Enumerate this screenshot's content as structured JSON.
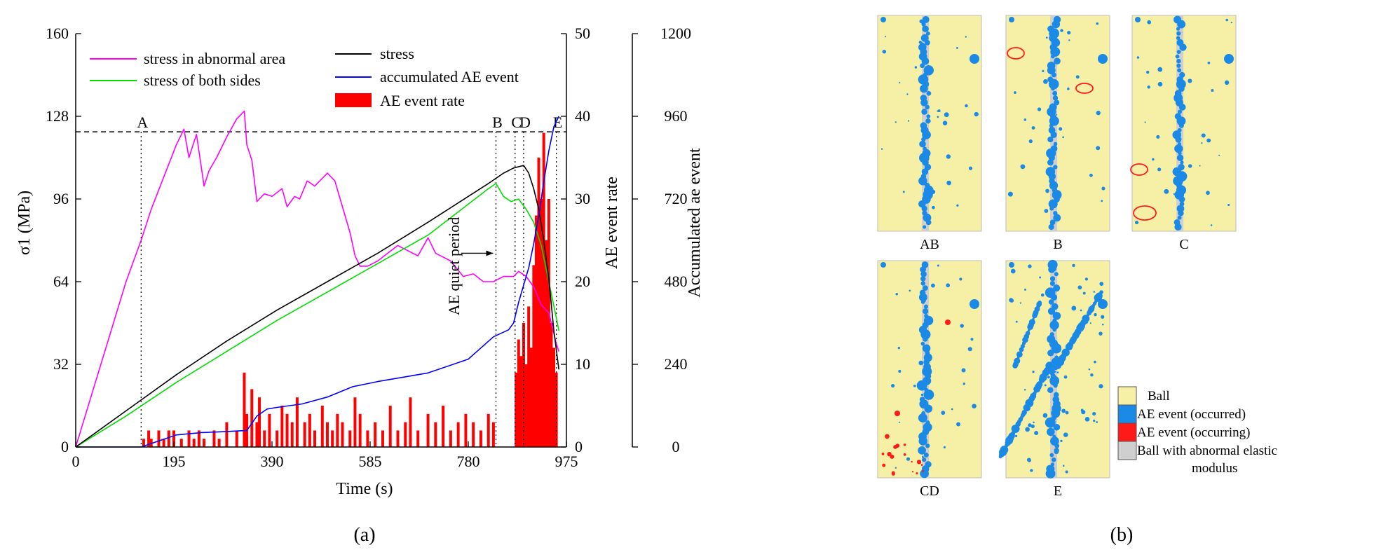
{
  "chart_data": [
    {
      "panel": "a",
      "type": "line",
      "panel_label": "(a)",
      "xlabel": "Time (s)",
      "xlim": [
        0,
        975
      ],
      "xticks": [
        0,
        195,
        390,
        585,
        780,
        975
      ],
      "axes": {
        "left": {
          "label": "σ1 (MPa)",
          "ylim": [
            0,
            160
          ],
          "ticks": [
            0,
            32,
            64,
            96,
            128,
            160
          ]
        },
        "right1": {
          "label": "AE event rate",
          "ylim": [
            0,
            50
          ],
          "ticks": [
            0,
            10,
            20,
            30,
            40,
            50
          ]
        },
        "right2": {
          "label": "Accumulated ae event",
          "ylim": [
            0,
            1200
          ],
          "ticks": [
            0,
            240,
            480,
            720,
            960,
            1200
          ]
        }
      },
      "reference_line": {
        "y": 122,
        "style": "dashed"
      },
      "event_markers": [
        {
          "label": "A",
          "x": 130
        },
        {
          "label": "B",
          "x": 835
        },
        {
          "label": "C",
          "x": 873
        },
        {
          "label": "D",
          "x": 890
        },
        {
          "label": "E",
          "x": 955
        }
      ],
      "annotation": {
        "text": "AE quiet period",
        "x_from": 755,
        "x_to": 835,
        "y": 75
      },
      "legend": [
        {
          "label": "stress in abnormal area",
          "color": "#ff00ff",
          "kind": "line"
        },
        {
          "label": "stress of both sides",
          "color": "#00dd00",
          "kind": "line"
        },
        {
          "label": "stress",
          "color": "#000000",
          "kind": "line"
        },
        {
          "label": "accumulated AE event",
          "color": "#0000ff",
          "kind": "line"
        },
        {
          "label": "AE event rate",
          "color": "#ff0000",
          "kind": "bar"
        }
      ],
      "series": [
        {
          "name": "stress in abnormal area",
          "axis": "left",
          "color": "#ff00ff",
          "x": [
            0,
            50,
            100,
            130,
            150,
            180,
            200,
            215,
            225,
            240,
            255,
            265,
            280,
            300,
            320,
            335,
            340,
            350,
            360,
            375,
            390,
            410,
            420,
            435,
            445,
            460,
            475,
            490,
            500,
            515,
            530,
            545,
            555,
            565,
            580,
            600,
            620,
            640,
            660,
            680,
            700,
            715,
            725,
            745,
            770,
            790,
            810,
            830,
            850,
            870,
            880,
            895,
            910,
            925,
            940,
            955,
            960
          ],
          "y": [
            0,
            32,
            64,
            80,
            92,
            107,
            117,
            123,
            112,
            121,
            101,
            107,
            112,
            120,
            127,
            130,
            117,
            111,
            95,
            98,
            97,
            100,
            93,
            97,
            96,
            103,
            101,
            104,
            106,
            103,
            93,
            83,
            74,
            70,
            70,
            72,
            75,
            78,
            76,
            74,
            81,
            75,
            74,
            72,
            66,
            67,
            64,
            64,
            66,
            66,
            68,
            66,
            62,
            55,
            52,
            40,
            37
          ]
        },
        {
          "name": "stress of both sides",
          "axis": "left",
          "color": "#00dd00",
          "x": [
            0,
            100,
            200,
            300,
            400,
            500,
            600,
            700,
            780,
            820,
            835,
            850,
            865,
            880,
            895,
            910,
            925,
            940,
            955,
            960
          ],
          "y": [
            0,
            12,
            25,
            37,
            49,
            60,
            71,
            82,
            94,
            100,
            102,
            97,
            95,
            96,
            92,
            87,
            78,
            64,
            50,
            45
          ]
        },
        {
          "name": "stress",
          "axis": "left",
          "color": "#000000",
          "x": [
            0,
            100,
            200,
            300,
            400,
            500,
            600,
            700,
            780,
            820,
            850,
            870,
            890,
            900,
            910,
            920,
            930,
            940,
            950,
            960
          ],
          "y": [
            0,
            14,
            28,
            41,
            53,
            64,
            75,
            87,
            97,
            102,
            106,
            108,
            109,
            106,
            100,
            92,
            80,
            65,
            45,
            30
          ]
        },
        {
          "name": "accumulated AE event",
          "axis": "right2",
          "color": "#0000ff",
          "x": [
            0,
            130,
            200,
            250,
            300,
            340,
            360,
            380,
            400,
            450,
            500,
            550,
            600,
            700,
            780,
            830,
            860,
            870,
            880,
            890,
            900,
            910,
            920,
            930,
            940,
            950,
            960
          ],
          "y": [
            0,
            0,
            35,
            42,
            45,
            48,
            90,
            110,
            115,
            125,
            145,
            175,
            190,
            215,
            255,
            320,
            340,
            360,
            420,
            470,
            520,
            590,
            670,
            770,
            860,
            930,
            960
          ]
        }
      ],
      "bar_series": {
        "name": "AE event rate",
        "axis": "right1",
        "color": "#ff0000",
        "x": [
          135,
          145,
          150,
          165,
          175,
          185,
          195,
          210,
          225,
          235,
          245,
          255,
          275,
          285,
          300,
          320,
          335,
          340,
          350,
          360,
          365,
          375,
          385,
          400,
          410,
          420,
          430,
          440,
          455,
          465,
          475,
          490,
          500,
          510,
          520,
          530,
          545,
          555,
          565,
          580,
          595,
          610,
          625,
          640,
          655,
          665,
          680,
          700,
          715,
          730,
          745,
          760,
          775,
          790,
          805,
          820,
          830,
          875,
          880,
          885,
          890,
          895,
          900,
          905,
          910,
          915,
          920,
          925,
          930,
          935,
          940,
          945,
          950,
          955
        ],
        "y": [
          1,
          2,
          1,
          2,
          1,
          2,
          2,
          1,
          2,
          1,
          2,
          1,
          2,
          1,
          3,
          2,
          9,
          4,
          7,
          3,
          6,
          2,
          4,
          2,
          5,
          4,
          3,
          6,
          3,
          4,
          2,
          5,
          3,
          2,
          4,
          3,
          2,
          6,
          4,
          2,
          3,
          2,
          5,
          2,
          3,
          6,
          2,
          4,
          3,
          5,
          2,
          3,
          4,
          3,
          2,
          4,
          3,
          9,
          13,
          11,
          15,
          10,
          17,
          12,
          22,
          28,
          35,
          30,
          38,
          25,
          30,
          15,
          12,
          9
        ]
      }
    },
    {
      "panel": "b",
      "type": "other",
      "panel_label": "(b)",
      "subpanels": [
        "AB",
        "B",
        "C",
        "CD",
        "E"
      ],
      "legend": [
        {
          "label": "Ball",
          "color": "#f6f0a6"
        },
        {
          "label": "AE event (occurred)",
          "color": "#1a8ae6"
        },
        {
          "label": "AE event (occurring)",
          "color": "#ff1a1a"
        },
        {
          "label": "Ball with abnormal elastic modulus",
          "color": "#cfcfcf"
        }
      ]
    }
  ]
}
